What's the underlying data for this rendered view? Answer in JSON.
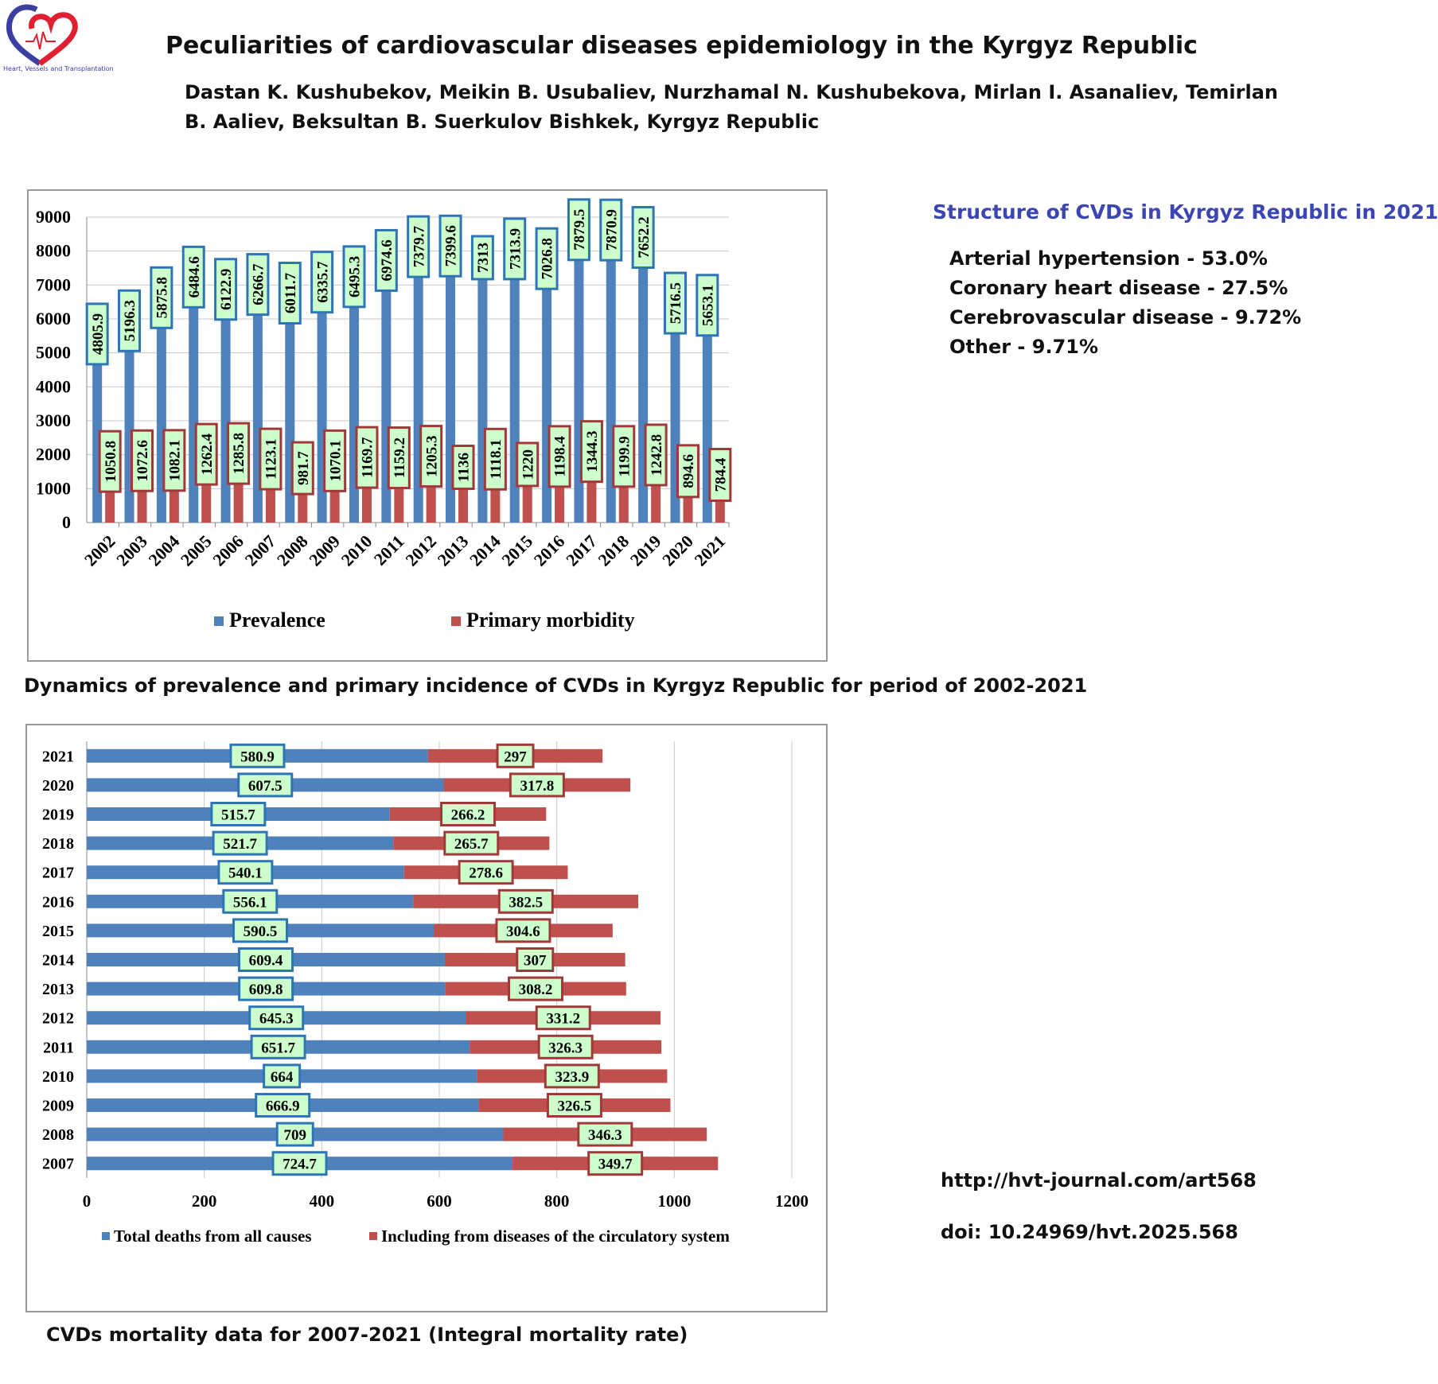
{
  "header": {
    "logo_caption": "Heart, Vessels and Transplantation",
    "title": "Peculiarities of cardiovascular diseases epidemiology in the Kyrgyz Republic",
    "authors_line1": "Dastan K. Kushubekov, Meikin B. Usubaliev,  Nurzhamal N. Kushubekova, Mirlan I. Asanaliev, Temirlan",
    "authors_line2": "B. Aaliev, Beksultan B. Suerkulov  Bishkek, Kyrgyz Republic"
  },
  "structure": {
    "title": "Structure of CVDs in Kyrgyz Republic in 2021",
    "items": [
      "Arterial hypertension - 53.0%",
      "Coronary heart disease - 27.5%",
      "Cerebrovascular disease - 9.72%",
      "Other - 9.71%"
    ]
  },
  "captions": {
    "chart1": "Dynamics of prevalence and primary incidence of CVDs in Kyrgyz Republic for period of 2002-2021",
    "chart2": "CVDs mortality data for 2007-2021 (Integral mortality rate)"
  },
  "links": {
    "url": "http://hvt-journal.com/art568",
    "doi": "doi: 10.24969/hvt.2025.568"
  },
  "colors": {
    "blue": "#4f81bd",
    "red": "#c0504d",
    "label_fill": "#ccffcc",
    "blue_label_border": "#2e75b6",
    "red_label_border": "#a03a3a",
    "structure_title": "#3c46b3"
  },
  "chart_data": [
    {
      "type": "bar",
      "orientation": "vertical",
      "categories": [
        "2002",
        "2003",
        "2004",
        "2005",
        "2006",
        "2007",
        "2008",
        "2009",
        "2010",
        "2011",
        "2012",
        "2013",
        "2014",
        "2015",
        "2016",
        "2017",
        "2018",
        "2019",
        "2020",
        "2021"
      ],
      "series": [
        {
          "name": "Prevalence",
          "values": [
            4805.9,
            5196.3,
            5875.8,
            6484.6,
            6122.9,
            6266.7,
            6011.7,
            6335.7,
            6495.3,
            6974.6,
            7379.7,
            7399.6,
            7313,
            7313.9,
            7026.8,
            7879.5,
            7870.9,
            7652.2,
            5716.5,
            5653.1
          ]
        },
        {
          "name": "Primary morbidity",
          "values": [
            1050.8,
            1072.6,
            1082.1,
            1262.4,
            1285.8,
            1123.1,
            981.7,
            1070.1,
            1169.7,
            1159.2,
            1205.3,
            1136,
            1118.1,
            1220,
            1198.4,
            1344.3,
            1199.9,
            1242.8,
            894.6,
            784.4
          ]
        }
      ],
      "ylim": [
        0,
        9000
      ],
      "yticks": [
        "0",
        "1000",
        "2000",
        "3000",
        "4000",
        "5000",
        "6000",
        "7000",
        "8000",
        "9000"
      ],
      "grid": true,
      "legend": "bottom",
      "data_labels": true
    },
    {
      "type": "bar",
      "orientation": "horizontal",
      "stacked": true,
      "categories": [
        "2021",
        "2020",
        "2019",
        "2018",
        "2017",
        "2016",
        "2015",
        "2014",
        "2013",
        "2012",
        "2011",
        "2010",
        "2009",
        "2008",
        "2007"
      ],
      "series": [
        {
          "name": "Total deaths from all causes",
          "values": [
            580.9,
            607.5,
            515.7,
            521.7,
            540.1,
            556.1,
            590.5,
            609.4,
            609.8,
            645.3,
            651.7,
            664,
            666.9,
            709,
            724.7
          ]
        },
        {
          "name": "Including from diseases of the circulatory system",
          "values": [
            297,
            317.8,
            266.2,
            265.7,
            278.6,
            382.5,
            304.6,
            307,
            308.2,
            331.2,
            326.3,
            323.9,
            326.5,
            346.3,
            349.7
          ]
        }
      ],
      "xlim": [
        0,
        1200
      ],
      "xticks": [
        "0",
        "200",
        "400",
        "600",
        "800",
        "1000",
        "1200"
      ],
      "grid": true,
      "legend": "bottom",
      "data_labels": true
    }
  ]
}
